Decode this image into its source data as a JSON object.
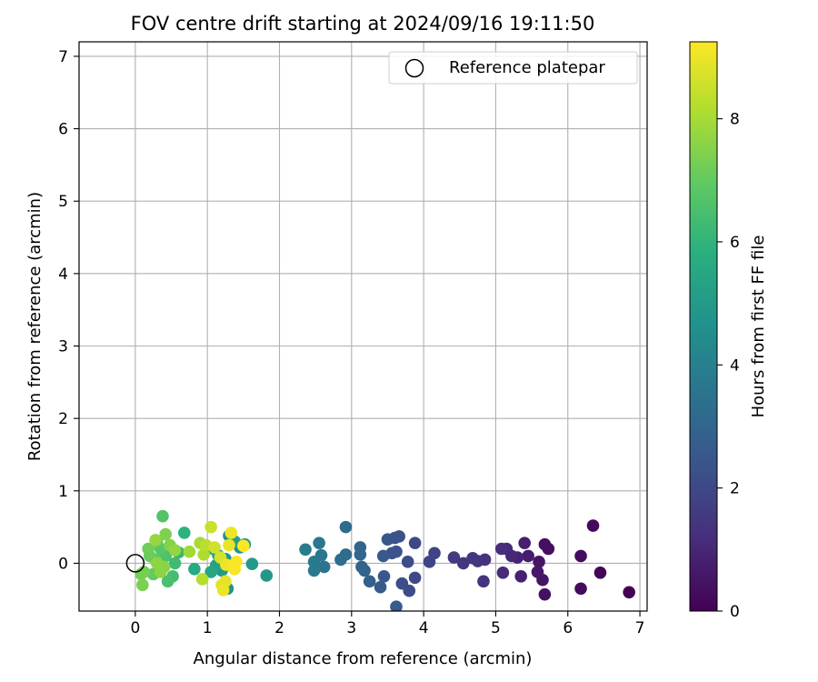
{
  "chart_data": {
    "type": "scatter",
    "title": "FOV centre drift starting at 2024/09/16 19:11:50",
    "xlabel": "Angular distance from reference (arcmin)",
    "ylabel": "Rotation from reference (arcmin)",
    "xlim": [
      -0.78,
      7.1
    ],
    "ylim": [
      -0.66,
      7.2
    ],
    "xticks": [
      0,
      1,
      2,
      3,
      4,
      5,
      6,
      7
    ],
    "yticks": [
      0,
      1,
      2,
      3,
      4,
      5,
      6,
      7
    ],
    "grid": true,
    "legend": {
      "placement": "upper-right",
      "entries": [
        "Reference platepar"
      ]
    },
    "colorbar": {
      "label": "Hours from first FF file",
      "range": [
        0,
        9.25
      ],
      "ticks": [
        0,
        2,
        4,
        6,
        8
      ],
      "colormap": "viridis"
    },
    "reference": {
      "name": "Reference platepar",
      "x": 0,
      "y": 0
    },
    "series": [
      {
        "name": "",
        "points": [
          {
            "x": 6.85,
            "y": -0.4,
            "t": 0.0
          },
          {
            "x": 6.45,
            "y": -0.13,
            "t": 0.1
          },
          {
            "x": 6.35,
            "y": 0.52,
            "t": 0.2
          },
          {
            "x": 6.18,
            "y": 0.1,
            "t": 0.25
          },
          {
            "x": 6.18,
            "y": -0.35,
            "t": 0.3
          },
          {
            "x": 5.73,
            "y": 0.2,
            "t": 0.35
          },
          {
            "x": 5.68,
            "y": 0.26,
            "t": 0.4
          },
          {
            "x": 5.68,
            "y": -0.43,
            "t": 0.45
          },
          {
            "x": 5.65,
            "y": -0.23,
            "t": 0.5
          },
          {
            "x": 5.6,
            "y": 0.02,
            "t": 0.55
          },
          {
            "x": 5.58,
            "y": -0.12,
            "t": 0.6
          },
          {
            "x": 5.45,
            "y": 0.1,
            "t": 0.7
          },
          {
            "x": 5.4,
            "y": 0.28,
            "t": 0.8
          },
          {
            "x": 5.35,
            "y": -0.18,
            "t": 0.85
          },
          {
            "x": 5.3,
            "y": 0.08,
            "t": 0.9
          },
          {
            "x": 5.22,
            "y": 0.1,
            "t": 1.0
          },
          {
            "x": 5.15,
            "y": 0.2,
            "t": 1.05
          },
          {
            "x": 5.1,
            "y": -0.13,
            "t": 1.1
          },
          {
            "x": 5.08,
            "y": 0.2,
            "t": 1.15
          },
          {
            "x": 4.85,
            "y": 0.05,
            "t": 1.3
          },
          {
            "x": 4.83,
            "y": -0.25,
            "t": 1.35
          },
          {
            "x": 4.75,
            "y": 0.03,
            "t": 1.4
          },
          {
            "x": 4.68,
            "y": 0.07,
            "t": 1.45
          },
          {
            "x": 4.55,
            "y": 0.0,
            "t": 1.5
          },
          {
            "x": 4.42,
            "y": 0.08,
            "t": 1.6
          },
          {
            "x": 4.15,
            "y": 0.14,
            "t": 1.8
          },
          {
            "x": 4.08,
            "y": 0.02,
            "t": 1.85
          },
          {
            "x": 3.88,
            "y": 0.28,
            "t": 2.0
          },
          {
            "x": 3.88,
            "y": -0.2,
            "t": 2.05
          },
          {
            "x": 3.8,
            "y": -0.38,
            "t": 2.1
          },
          {
            "x": 3.78,
            "y": 0.02,
            "t": 2.15
          },
          {
            "x": 3.7,
            "y": -0.28,
            "t": 2.2
          },
          {
            "x": 3.66,
            "y": 0.37,
            "t": 2.25
          },
          {
            "x": 3.62,
            "y": 0.16,
            "t": 2.3
          },
          {
            "x": 3.6,
            "y": 0.35,
            "t": 2.35
          },
          {
            "x": 3.56,
            "y": 0.14,
            "t": 2.4
          },
          {
            "x": 3.5,
            "y": 0.33,
            "t": 2.45
          },
          {
            "x": 3.45,
            "y": -0.18,
            "t": 2.5
          },
          {
            "x": 3.44,
            "y": 0.1,
            "t": 2.55
          },
          {
            "x": 3.4,
            "y": -0.33,
            "t": 2.6
          },
          {
            "x": 3.62,
            "y": -0.6,
            "t": 2.65
          },
          {
            "x": 3.25,
            "y": -0.25,
            "t": 2.8
          },
          {
            "x": 3.18,
            "y": -0.1,
            "t": 2.9
          },
          {
            "x": 3.14,
            "y": -0.05,
            "t": 2.95
          },
          {
            "x": 3.12,
            "y": 0.22,
            "t": 3.0
          },
          {
            "x": 3.12,
            "y": 0.12,
            "t": 3.05
          },
          {
            "x": 2.92,
            "y": 0.5,
            "t": 3.2
          },
          {
            "x": 2.92,
            "y": 0.12,
            "t": 3.25
          },
          {
            "x": 2.85,
            "y": 0.05,
            "t": 3.3
          },
          {
            "x": 2.62,
            "y": -0.05,
            "t": 3.5
          },
          {
            "x": 2.58,
            "y": 0.11,
            "t": 3.6
          },
          {
            "x": 2.55,
            "y": 0.28,
            "t": 3.65
          },
          {
            "x": 2.48,
            "y": -0.1,
            "t": 3.7
          },
          {
            "x": 2.48,
            "y": 0.02,
            "t": 3.75
          },
          {
            "x": 2.36,
            "y": 0.19,
            "t": 3.85
          },
          {
            "x": 1.82,
            "y": -0.17,
            "t": 4.9
          },
          {
            "x": 1.62,
            "y": -0.01,
            "t": 5.0
          },
          {
            "x": 1.52,
            "y": 0.26,
            "t": 5.1
          },
          {
            "x": 1.45,
            "y": 0.22,
            "t": 4.8
          },
          {
            "x": 1.38,
            "y": 0.3,
            "t": 5.2
          },
          {
            "x": 1.3,
            "y": 0.38,
            "t": 4.7
          },
          {
            "x": 1.28,
            "y": -0.35,
            "t": 4.75
          },
          {
            "x": 1.25,
            "y": 0.06,
            "t": 4.9
          },
          {
            "x": 1.2,
            "y": -0.1,
            "t": 5.0
          },
          {
            "x": 1.15,
            "y": 0.11,
            "t": 5.1
          },
          {
            "x": 1.12,
            "y": -0.03,
            "t": 5.3
          },
          {
            "x": 1.08,
            "y": 0.2,
            "t": 5.4
          },
          {
            "x": 1.05,
            "y": -0.12,
            "t": 5.45
          },
          {
            "x": 0.82,
            "y": -0.08,
            "t": 5.6
          },
          {
            "x": 0.68,
            "y": 0.42,
            "t": 5.9
          },
          {
            "x": 0.6,
            "y": 0.15,
            "t": 6.1
          },
          {
            "x": 0.55,
            "y": 0.0,
            "t": 6.3
          },
          {
            "x": 0.52,
            "y": -0.18,
            "t": 6.4
          },
          {
            "x": 0.45,
            "y": -0.25,
            "t": 6.5
          },
          {
            "x": 0.42,
            "y": 0.1,
            "t": 6.6
          },
          {
            "x": 0.38,
            "y": 0.65,
            "t": 6.7
          },
          {
            "x": 0.35,
            "y": 0.2,
            "t": 6.8
          },
          {
            "x": 0.3,
            "y": 0.3,
            "t": 6.9
          },
          {
            "x": 0.28,
            "y": 0.05,
            "t": 6.95
          },
          {
            "x": 0.25,
            "y": -0.15,
            "t": 7.0
          },
          {
            "x": 0.2,
            "y": 0.1,
            "t": 7.1
          },
          {
            "x": 0.18,
            "y": 0.2,
            "t": 7.2
          },
          {
            "x": 0.12,
            "y": -0.12,
            "t": 7.25
          },
          {
            "x": 0.08,
            "y": -0.15,
            "t": 7.3
          },
          {
            "x": 0.1,
            "y": -0.3,
            "t": 7.35
          },
          {
            "x": 0.42,
            "y": 0.4,
            "t": 7.4
          },
          {
            "x": 0.48,
            "y": 0.25,
            "t": 7.5
          },
          {
            "x": 0.4,
            "y": -0.05,
            "t": 7.55
          },
          {
            "x": 0.35,
            "y": -0.12,
            "t": 7.6
          },
          {
            "x": 0.3,
            "y": 0.0,
            "t": 7.65
          },
          {
            "x": 0.55,
            "y": 0.18,
            "t": 7.7
          },
          {
            "x": 0.28,
            "y": 0.32,
            "t": 7.75
          },
          {
            "x": 0.75,
            "y": 0.16,
            "t": 7.9
          },
          {
            "x": 0.9,
            "y": 0.28,
            "t": 8.0
          },
          {
            "x": 0.95,
            "y": 0.12,
            "t": 8.1
          },
          {
            "x": 0.93,
            "y": -0.22,
            "t": 8.2
          },
          {
            "x": 0.98,
            "y": 0.25,
            "t": 8.3
          },
          {
            "x": 1.05,
            "y": 0.5,
            "t": 8.5
          },
          {
            "x": 1.1,
            "y": 0.22,
            "t": 8.6
          },
          {
            "x": 1.18,
            "y": 0.08,
            "t": 8.7
          },
          {
            "x": 1.2,
            "y": -0.3,
            "t": 8.8
          },
          {
            "x": 1.22,
            "y": -0.37,
            "t": 9.0
          },
          {
            "x": 1.25,
            "y": -0.25,
            "t": 8.9
          },
          {
            "x": 1.3,
            "y": 0.25,
            "t": 8.95
          },
          {
            "x": 1.33,
            "y": 0.42,
            "t": 9.05
          },
          {
            "x": 1.35,
            "y": -0.05,
            "t": 9.1
          },
          {
            "x": 1.38,
            "y": -0.08,
            "t": 9.15
          },
          {
            "x": 1.4,
            "y": 0.02,
            "t": 9.2
          },
          {
            "x": 1.5,
            "y": 0.24,
            "t": 9.25
          },
          {
            "x": 1.26,
            "y": -0.02,
            "t": 9.0
          }
        ]
      }
    ]
  }
}
